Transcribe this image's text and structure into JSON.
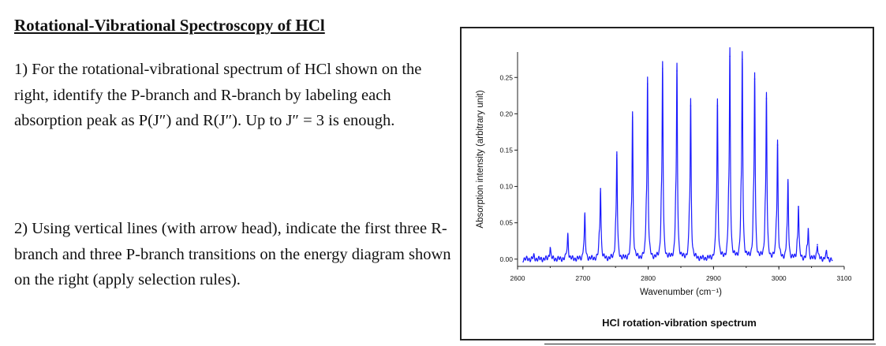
{
  "document": {
    "title": "Rotational-Vibrational Spectroscopy of HCl",
    "question1": "1) For the rotational-vibrational spectrum of HCl shown on the right, identify the P-branch and R-branch by labeling each absorption peak as P(J″) and R(J″). Up to J″ = 3 is enough.",
    "question2": "2) Using vertical lines (with arrow head), indicate the first three R-branch and three P-branch transitions on the energy diagram shown on the right (apply selection rules)."
  },
  "chart_data": {
    "type": "line",
    "title": "HCl rotation-vibration spectrum",
    "xlabel": "Wavenumber (cm⁻¹)",
    "ylabel": "Absorption intensity (arbitrary unit)",
    "xlim": [
      2600,
      3100
    ],
    "ylim": [
      -0.01,
      0.285
    ],
    "x_ticks": [
      2600,
      2700,
      2800,
      2900,
      3000,
      3100
    ],
    "x_tick_labels": [
      "2600",
      "2700",
      "2800",
      "2900",
      "3000",
      "3100"
    ],
    "y_ticks": [
      0.0,
      0.05,
      0.1,
      0.15,
      0.2,
      0.25
    ],
    "y_tick_labels": [
      "0.00",
      "0.05",
      "0.10",
      "0.15",
      "0.20",
      "0.25"
    ],
    "line_color": "#1a1aff",
    "grid": false,
    "peaks": [
      {
        "x": 2625,
        "y": 0.004
      },
      {
        "x": 2650,
        "y": 0.016
      },
      {
        "x": 2677,
        "y": 0.033
      },
      {
        "x": 2703,
        "y": 0.058
      },
      {
        "x": 2727,
        "y": 0.097
      },
      {
        "x": 2752,
        "y": 0.143
      },
      {
        "x": 2776,
        "y": 0.195
      },
      {
        "x": 2799,
        "y": 0.241
      },
      {
        "x": 2822,
        "y": 0.262
      },
      {
        "x": 2844,
        "y": 0.259
      },
      {
        "x": 2865,
        "y": 0.211
      },
      {
        "x": 2906,
        "y": 0.211
      },
      {
        "x": 2925,
        "y": 0.279
      },
      {
        "x": 2944,
        "y": 0.275
      },
      {
        "x": 2963,
        "y": 0.248
      },
      {
        "x": 2981,
        "y": 0.221
      },
      {
        "x": 2998,
        "y": 0.157
      },
      {
        "x": 3014,
        "y": 0.104
      },
      {
        "x": 3030,
        "y": 0.072
      },
      {
        "x": 3045,
        "y": 0.042
      },
      {
        "x": 3059,
        "y": 0.02
      },
      {
        "x": 3073,
        "y": 0.009
      }
    ]
  }
}
